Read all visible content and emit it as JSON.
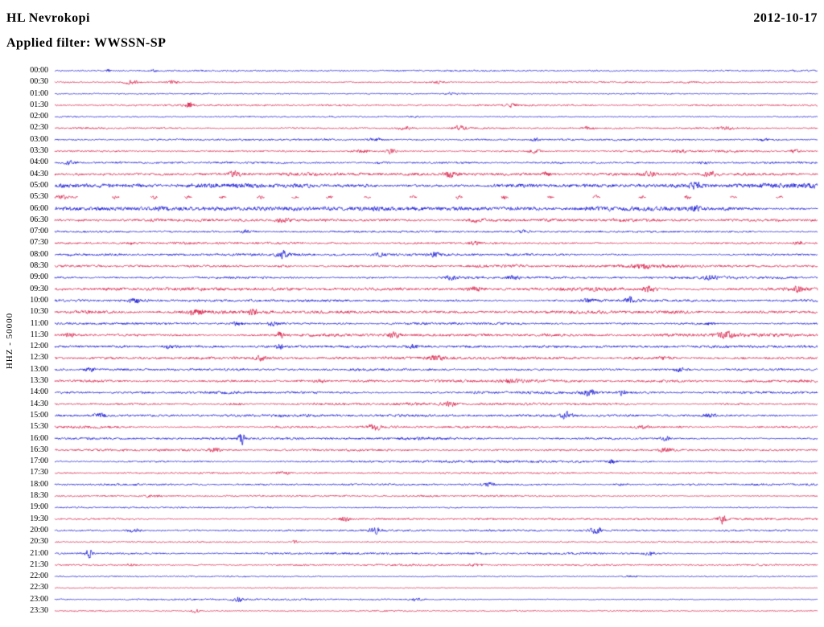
{
  "header": {
    "station": "HL Nevrokopi",
    "date": "2012-10-17",
    "filter_label": "Applied filter: WWSSN-SP"
  },
  "y_axis_label": "HHZ - 50000",
  "colors": {
    "blue": "#0000d0",
    "red": "#d50f3c",
    "text": "#000000",
    "background": "#ffffff"
  },
  "chart_data": {
    "type": "line",
    "title": "Helicorder day plot, station HL Nevrokopi, 2012-10-17, channel HHZ, scale 50000, filter WWSSN-SP",
    "xlabel": "",
    "ylabel": "HHZ - 50000",
    "row_minutes": 30,
    "note": "48 half-hour traces, alternating blue/red. events = [x_fraction_of_row, peak_amplitude_px, gaussian_width_fraction]; noise = background amplitude in px.",
    "rows": [
      {
        "time": "00:00",
        "color": "blue",
        "noise": 0.7,
        "events": [
          [
            0.07,
            2.2,
            0.003
          ],
          [
            0.13,
            1.5,
            0.004
          ]
        ]
      },
      {
        "time": "00:30",
        "color": "red",
        "noise": 0.8,
        "events": [
          [
            0.1,
            2.5,
            0.01
          ],
          [
            0.155,
            2.0,
            0.008
          ],
          [
            0.5,
            1.2,
            0.01
          ]
        ]
      },
      {
        "time": "01:00",
        "color": "blue",
        "noise": 0.6,
        "events": [
          [
            0.52,
            1.0,
            0.008
          ]
        ]
      },
      {
        "time": "01:30",
        "color": "red",
        "noise": 0.8,
        "events": [
          [
            0.175,
            3.0,
            0.006
          ],
          [
            0.6,
            1.2,
            0.01
          ]
        ]
      },
      {
        "time": "02:00",
        "color": "blue",
        "noise": 0.7,
        "events": [
          [
            0.47,
            1.3,
            0.01
          ],
          [
            0.78,
            1.2,
            0.008
          ]
        ]
      },
      {
        "time": "02:30",
        "color": "red",
        "noise": 0.9,
        "events": [
          [
            0.46,
            2.0,
            0.012
          ],
          [
            0.53,
            2.0,
            0.01
          ],
          [
            0.7,
            2.0,
            0.008
          ],
          [
            0.88,
            1.5,
            0.01
          ]
        ]
      },
      {
        "time": "03:00",
        "color": "blue",
        "noise": 0.8,
        "events": [
          [
            0.42,
            1.5,
            0.01
          ],
          [
            0.63,
            1.5,
            0.006
          ],
          [
            0.93,
            1.3,
            0.008
          ]
        ]
      },
      {
        "time": "03:30",
        "color": "red",
        "noise": 0.9,
        "events": [
          [
            0.4,
            2.0,
            0.012
          ],
          [
            0.44,
            2.2,
            0.008
          ],
          [
            0.63,
            1.5,
            0.01
          ],
          [
            0.82,
            1.5,
            0.01
          ],
          [
            0.97,
            2.2,
            0.006
          ]
        ]
      },
      {
        "time": "04:00",
        "color": "blue",
        "noise": 1.0,
        "events": [
          [
            0.02,
            2.0,
            0.006
          ],
          [
            0.43,
            1.5,
            0.01
          ],
          [
            0.85,
            1.3,
            0.01
          ]
        ]
      },
      {
        "time": "04:30",
        "color": "red",
        "noise": 1.3,
        "events": [
          [
            0.235,
            2.2,
            0.008
          ],
          [
            0.52,
            2.8,
            0.008
          ],
          [
            0.645,
            2.6,
            0.008
          ],
          [
            0.78,
            2.0,
            0.01
          ],
          [
            0.86,
            2.2,
            0.01
          ]
        ]
      },
      {
        "time": "05:00",
        "color": "blue",
        "noise": 2.2,
        "events": [
          [
            0.84,
            2.8,
            0.008
          ]
        ]
      },
      {
        "time": "05:30",
        "color": "red",
        "noise": 0.45,
        "sparse": true,
        "events": [
          [
            0.005,
            2.0,
            0.02
          ],
          [
            0.08,
            1.8,
            0.004
          ],
          [
            0.13,
            1.7,
            0.004
          ],
          [
            0.175,
            1.9,
            0.004
          ],
          [
            0.22,
            1.6,
            0.004
          ],
          [
            0.27,
            1.8,
            0.004
          ],
          [
            0.315,
            1.7,
            0.004
          ],
          [
            0.36,
            1.9,
            0.004
          ],
          [
            0.41,
            1.6,
            0.004
          ],
          [
            0.47,
            1.8,
            0.004
          ],
          [
            0.53,
            1.7,
            0.004
          ],
          [
            0.59,
            1.9,
            0.004
          ],
          [
            0.65,
            1.6,
            0.004
          ],
          [
            0.71,
            1.8,
            0.004
          ],
          [
            0.77,
            2.0,
            0.004
          ],
          [
            0.83,
            1.8,
            0.004
          ],
          [
            0.89,
            1.9,
            0.004
          ],
          [
            0.95,
            1.7,
            0.004
          ]
        ]
      },
      {
        "time": "06:00",
        "color": "blue",
        "noise": 2.3,
        "events": [
          [
            0.84,
            3.0,
            0.006
          ]
        ]
      },
      {
        "time": "06:30",
        "color": "red",
        "noise": 1.3,
        "events": [
          [
            0.3,
            2.6,
            0.01
          ],
          [
            0.55,
            1.8,
            0.01
          ]
        ]
      },
      {
        "time": "07:00",
        "color": "blue",
        "noise": 1.0,
        "events": [
          [
            0.25,
            1.4,
            0.01
          ],
          [
            0.615,
            2.6,
            0.008
          ]
        ]
      },
      {
        "time": "07:30",
        "color": "red",
        "noise": 1.0,
        "events": [
          [
            0.1,
            1.5,
            0.008
          ],
          [
            0.55,
            1.4,
            0.01
          ],
          [
            0.975,
            2.6,
            0.005
          ]
        ]
      },
      {
        "time": "08:00",
        "color": "blue",
        "noise": 1.1,
        "events": [
          [
            0.3,
            2.6,
            0.008
          ],
          [
            0.425,
            2.0,
            0.008
          ],
          [
            0.5,
            2.0,
            0.008
          ]
        ]
      },
      {
        "time": "08:30",
        "color": "red",
        "noise": 1.4,
        "events": [
          [
            0.3,
            1.6,
            0.01
          ],
          [
            0.77,
            2.0,
            0.01
          ]
        ]
      },
      {
        "time": "09:00",
        "color": "blue",
        "noise": 1.2,
        "events": [
          [
            0.52,
            2.2,
            0.008
          ],
          [
            0.6,
            2.6,
            0.008
          ],
          [
            0.86,
            1.6,
            0.01
          ]
        ]
      },
      {
        "time": "09:30",
        "color": "red",
        "noise": 1.4,
        "events": [
          [
            0.55,
            2.0,
            0.01
          ],
          [
            0.78,
            2.6,
            0.008
          ],
          [
            0.975,
            2.0,
            0.006
          ]
        ]
      },
      {
        "time": "10:00",
        "color": "blue",
        "noise": 1.2,
        "events": [
          [
            0.105,
            2.6,
            0.008
          ],
          [
            0.7,
            2.0,
            0.01
          ],
          [
            0.755,
            2.6,
            0.008
          ]
        ]
      },
      {
        "time": "10:30",
        "color": "red",
        "noise": 1.5,
        "events": [
          [
            0.185,
            2.0,
            0.01
          ],
          [
            0.26,
            2.6,
            0.008
          ]
        ]
      },
      {
        "time": "11:00",
        "color": "blue",
        "noise": 1.3,
        "events": [
          [
            0.24,
            2.4,
            0.008
          ],
          [
            0.285,
            2.4,
            0.006
          ],
          [
            0.86,
            2.0,
            0.008
          ]
        ]
      },
      {
        "time": "11:30",
        "color": "red",
        "noise": 1.4,
        "events": [
          [
            0.02,
            2.0,
            0.006
          ],
          [
            0.295,
            5.5,
            0.004
          ],
          [
            0.445,
            3.2,
            0.008
          ],
          [
            0.88,
            1.8,
            0.01
          ]
        ]
      },
      {
        "time": "12:00",
        "color": "blue",
        "noise": 1.3,
        "events": [
          [
            0.15,
            2.0,
            0.008
          ],
          [
            0.295,
            3.5,
            0.004
          ],
          [
            0.47,
            2.2,
            0.01
          ]
        ]
      },
      {
        "time": "12:30",
        "color": "red",
        "noise": 1.3,
        "events": [
          [
            0.27,
            2.6,
            0.008
          ],
          [
            0.5,
            1.8,
            0.01
          ],
          [
            0.8,
            2.0,
            0.008
          ]
        ]
      },
      {
        "time": "13:00",
        "color": "blue",
        "noise": 1.2,
        "events": [
          [
            0.045,
            3.2,
            0.006
          ],
          [
            0.82,
            2.0,
            0.008
          ]
        ]
      },
      {
        "time": "13:30",
        "color": "red",
        "noise": 1.3,
        "events": [
          [
            0.35,
            1.6,
            0.01
          ],
          [
            0.6,
            1.5,
            0.01
          ]
        ]
      },
      {
        "time": "14:00",
        "color": "blue",
        "noise": 1.1,
        "events": [
          [
            0.7,
            2.6,
            0.008
          ],
          [
            0.745,
            3.0,
            0.006
          ]
        ]
      },
      {
        "time": "14:30",
        "color": "red",
        "noise": 1.2,
        "events": [
          [
            0.24,
            2.0,
            0.008
          ],
          [
            0.52,
            1.8,
            0.01
          ]
        ]
      },
      {
        "time": "15:00",
        "color": "blue",
        "noise": 1.2,
        "events": [
          [
            0.06,
            2.6,
            0.008
          ],
          [
            0.67,
            3.2,
            0.008
          ],
          [
            0.86,
            2.0,
            0.008
          ]
        ]
      },
      {
        "time": "15:30",
        "color": "red",
        "noise": 1.3,
        "events": [
          [
            0.42,
            3.8,
            0.008
          ],
          [
            0.77,
            2.0,
            0.008
          ]
        ]
      },
      {
        "time": "16:00",
        "color": "blue",
        "noise": 1.1,
        "events": [
          [
            0.245,
            6.0,
            0.004
          ],
          [
            0.8,
            3.4,
            0.006
          ]
        ]
      },
      {
        "time": "16:30",
        "color": "red",
        "noise": 1.1,
        "events": [
          [
            0.21,
            2.6,
            0.008
          ],
          [
            0.8,
            1.8,
            0.008
          ]
        ]
      },
      {
        "time": "17:00",
        "color": "blue",
        "noise": 0.9,
        "events": [
          [
            0.73,
            2.0,
            0.006
          ]
        ]
      },
      {
        "time": "17:30",
        "color": "red",
        "noise": 0.8,
        "events": [
          [
            0.3,
            1.2,
            0.01
          ]
        ]
      },
      {
        "time": "18:00",
        "color": "blue",
        "noise": 0.9,
        "events": [
          [
            0.57,
            1.8,
            0.01
          ],
          [
            0.74,
            1.4,
            0.01
          ]
        ]
      },
      {
        "time": "18:30",
        "color": "red",
        "noise": 0.8,
        "events": [
          [
            0.13,
            1.2,
            0.01
          ]
        ]
      },
      {
        "time": "19:00",
        "color": "blue",
        "noise": 0.7,
        "events": []
      },
      {
        "time": "19:30",
        "color": "red",
        "noise": 0.8,
        "events": [
          [
            0.38,
            1.8,
            0.008
          ],
          [
            0.875,
            3.4,
            0.005
          ]
        ]
      },
      {
        "time": "20:00",
        "color": "blue",
        "noise": 0.9,
        "events": [
          [
            0.105,
            1.8,
            0.008
          ],
          [
            0.42,
            2.4,
            0.008
          ],
          [
            0.71,
            2.6,
            0.008
          ]
        ]
      },
      {
        "time": "20:30",
        "color": "red",
        "noise": 0.8,
        "events": [
          [
            0.315,
            2.8,
            0.005
          ]
        ]
      },
      {
        "time": "21:00",
        "color": "blue",
        "noise": 0.9,
        "events": [
          [
            0.045,
            4.5,
            0.005
          ],
          [
            0.78,
            2.0,
            0.008
          ]
        ]
      },
      {
        "time": "21:30",
        "color": "red",
        "noise": 0.8,
        "events": [
          [
            0.1,
            1.4,
            0.008
          ],
          [
            0.55,
            1.2,
            0.01
          ]
        ]
      },
      {
        "time": "22:00",
        "color": "blue",
        "noise": 0.6,
        "events": [
          [
            0.755,
            1.8,
            0.008
          ]
        ]
      },
      {
        "time": "22:30",
        "color": "red",
        "noise": 0.5,
        "events": []
      },
      {
        "time": "23:00",
        "color": "blue",
        "noise": 0.7,
        "events": [
          [
            0.24,
            1.6,
            0.008
          ],
          [
            0.475,
            1.6,
            0.008
          ]
        ]
      },
      {
        "time": "23:30",
        "color": "red",
        "noise": 0.6,
        "events": [
          [
            0.185,
            2.2,
            0.006
          ]
        ]
      }
    ]
  }
}
